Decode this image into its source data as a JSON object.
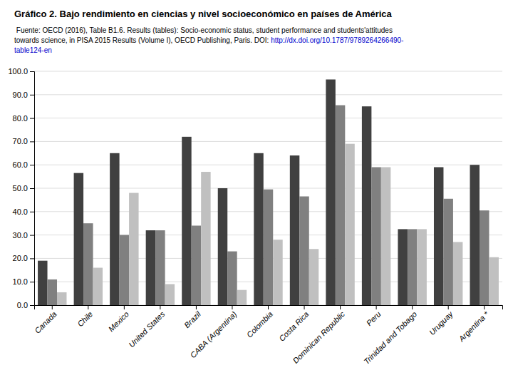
{
  "chart_data": {
    "type": "bar",
    "title": "Gráfico 2. Bajo rendimiento en ciencias y nivel socioeconómico en países de América",
    "subtitle": [
      " Fuente: OECD (2016), Table B1.6. Results (tables): Socio-economic status, student performance and students'attitudes",
      "towards science, in PISA 2015 Results (Volume I), OECD Publishing, Paris. DOI: ",
      "http://dx.doi.org/10.1787/9789264266490-",
      "table124-en"
    ],
    "categories": [
      "Canada",
      "Chile",
      "Mexico",
      "United States",
      "Brazil",
      "CABA (Argentina)",
      "Colombia",
      "Costa Rica",
      "Dominican Republic",
      "Peru",
      "Trinidad and Tobago",
      "Uruguay",
      "Argentina *"
    ],
    "series": [
      {
        "color": "#404040",
        "values": [
          19.0,
          56.5,
          65.0,
          32.0,
          72.0,
          50.0,
          65.0,
          64.0,
          96.5,
          85.0,
          32.5,
          59.0,
          60.0
        ]
      },
      {
        "color": "#808080",
        "values": [
          11.0,
          35.0,
          30.0,
          32.0,
          34.0,
          23.0,
          49.5,
          46.5,
          85.5,
          59.0,
          32.5,
          45.5,
          40.5
        ]
      },
      {
        "color": "#c0c0c0",
        "values": [
          5.5,
          16.0,
          48.0,
          9.0,
          57.0,
          6.5,
          28.0,
          24.0,
          69.0,
          59.0,
          32.5,
          27.0,
          20.5
        ]
      }
    ],
    "ylim": [
      0,
      100
    ],
    "yticks": [
      {
        "value": 0,
        "label": "0.0"
      },
      {
        "value": 10,
        "label": "10.0"
      },
      {
        "value": 20,
        "label": "20.0"
      },
      {
        "value": 30,
        "label": "30.0"
      },
      {
        "value": 40,
        "label": "40.0"
      },
      {
        "value": 50,
        "label": "50.0"
      },
      {
        "value": 60,
        "label": "60.0"
      },
      {
        "value": 70,
        "label": "70.0"
      },
      {
        "value": 80,
        "label": "80.0"
      },
      {
        "value": 90,
        "label": "90.0"
      },
      {
        "value": 100,
        "label": "100.0"
      }
    ],
    "grid": true
  }
}
